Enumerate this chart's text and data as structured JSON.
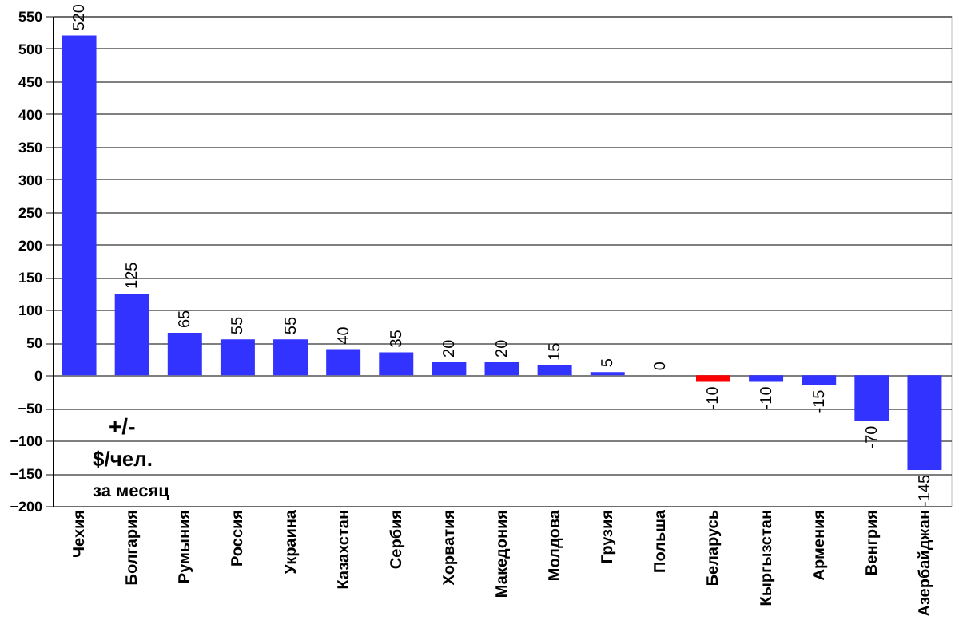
{
  "chart_data": {
    "type": "bar",
    "categories": [
      "Чехия",
      "Болгария",
      "Румыния",
      "Россия",
      "Украина",
      "Казахстан",
      "Сербия",
      "Хорватия",
      "Македония",
      "Молдова",
      "Грузия",
      "Польша",
      "Беларусь",
      "Кыргызстан",
      "Армения",
      "Венгрия",
      "Азербайджан"
    ],
    "values": [
      520,
      125,
      65,
      55,
      55,
      40,
      35,
      20,
      20,
      15,
      5,
      0,
      -10,
      -10,
      -15,
      -70,
      -145
    ],
    "colors": [
      "#3333ff",
      "#3333ff",
      "#3333ff",
      "#3333ff",
      "#3333ff",
      "#3333ff",
      "#3333ff",
      "#3333ff",
      "#3333ff",
      "#3333ff",
      "#3333ff",
      "#3333ff",
      "#ff0000",
      "#3333ff",
      "#3333ff",
      "#3333ff",
      "#3333ff"
    ],
    "ylim": [
      -200,
      550
    ],
    "yticks": [
      -200,
      -150,
      -100,
      -50,
      0,
      50,
      100,
      150,
      200,
      250,
      300,
      350,
      400,
      450,
      500,
      550
    ],
    "grid": "y",
    "data_labels": true,
    "annotations": [
      "+/-",
      "$/чел.",
      "за месяц"
    ]
  }
}
